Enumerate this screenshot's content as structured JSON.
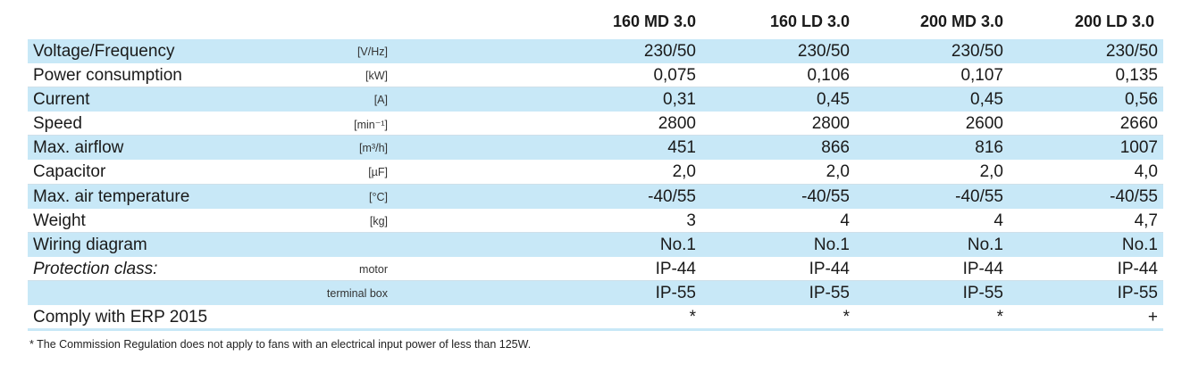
{
  "models": [
    "160 MD 3.0",
    "160 LD 3.0",
    "200 MD 3.0",
    "200 LD 3.0"
  ],
  "rows": [
    {
      "label": "Voltage/Frequency",
      "unit": "[V/Hz]",
      "values": [
        "230/50",
        "230/50",
        "230/50",
        "230/50"
      ]
    },
    {
      "label": "Power consumption",
      "unit": "[kW]",
      "values": [
        "0,075",
        "0,106",
        "0,107",
        "0,135"
      ]
    },
    {
      "label": "Current",
      "unit": "[A]",
      "values": [
        "0,31",
        "0,45",
        "0,45",
        "0,56"
      ]
    },
    {
      "label": "Speed",
      "unit": "[min⁻¹]",
      "values": [
        "2800",
        "2800",
        "2600",
        "2660"
      ]
    },
    {
      "label": "Max. airflow",
      "unit": "[m³/h]",
      "values": [
        "451",
        "866",
        "816",
        "1007"
      ]
    },
    {
      "label": "Capacitor",
      "unit": "[µF]",
      "values": [
        "2,0",
        "2,0",
        "2,0",
        "4,0"
      ]
    },
    {
      "label": "Max. air temperature",
      "unit": "[°C]",
      "values": [
        "-40/55",
        "-40/55",
        "-40/55",
        "-40/55"
      ]
    },
    {
      "label": "Weight",
      "unit": "[kg]",
      "values": [
        "3",
        "4",
        "4",
        "4,7"
      ]
    },
    {
      "label": "Wiring diagram",
      "unit": "",
      "values": [
        "No.1",
        "No.1",
        "No.1",
        "No.1"
      ]
    },
    {
      "label": "Protection class:",
      "unit": "motor",
      "values": [
        "IP-44",
        "IP-44",
        "IP-44",
        "IP-44"
      ]
    },
    {
      "label": "",
      "unit": "terminal box",
      "values": [
        "IP-55",
        "IP-55",
        "IP-55",
        "IP-55"
      ]
    },
    {
      "label": "Comply with ERP 2015",
      "unit": "",
      "values": [
        "*",
        "*",
        "*",
        "+"
      ]
    }
  ],
  "footnote": "* The Commission Regulation does not apply to fans with an electrical input power of less than 125W.",
  "colors": {
    "row_shade": "#c8e8f7",
    "text": "#1a1a1a"
  }
}
